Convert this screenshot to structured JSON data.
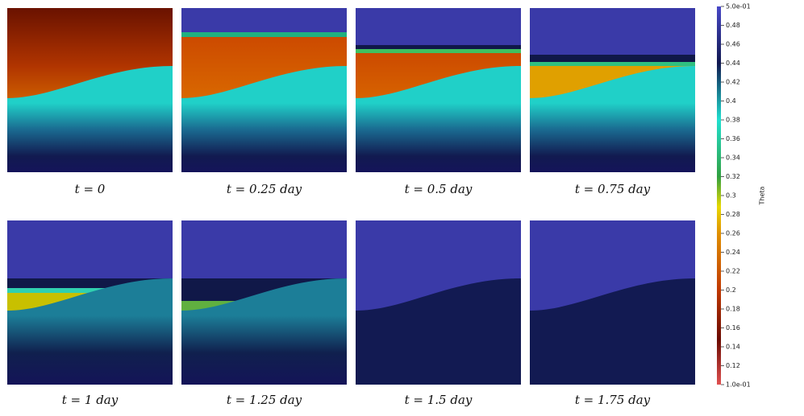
{
  "panels": [
    {
      "caption": "t = 0"
    },
    {
      "caption": "t = 0.25 day"
    },
    {
      "caption": "t = 0.5 day"
    },
    {
      "caption": "t = 0.75 day"
    },
    {
      "caption": "t = 1 day"
    },
    {
      "caption": "t = 1.25 day"
    },
    {
      "caption": "t = 1.5 day"
    },
    {
      "caption": "t = 1.75 day"
    }
  ],
  "colorbar": {
    "title": "Theta",
    "lim": [
      0.1,
      0.5
    ],
    "ticks": [
      {
        "value": 0.5,
        "label": "5.0e-01"
      },
      0.48,
      0.46,
      0.44,
      0.42,
      0.4,
      0.38,
      0.36,
      0.34,
      0.32,
      0.3,
      0.28,
      0.26,
      0.24,
      0.22,
      0.2,
      0.18,
      0.16,
      0.14,
      0.12,
      {
        "value": 0.1,
        "label": "1.0e-01"
      }
    ]
  }
}
